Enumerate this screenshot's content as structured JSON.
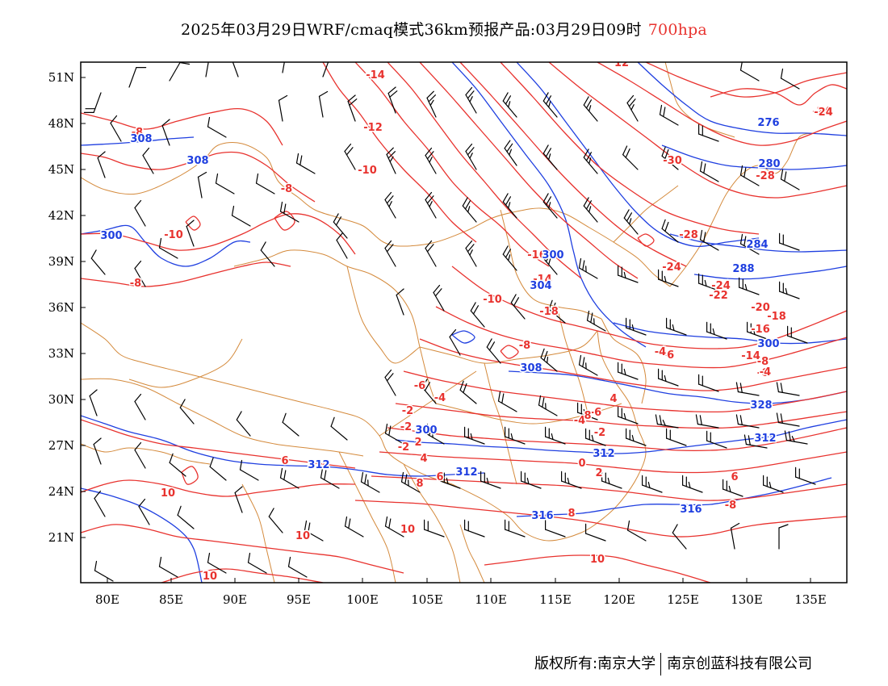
{
  "title": {
    "main": "2025年03月29日WRF/cmaq模式36km预报产品:03月29日09时",
    "level": "700hpa"
  },
  "colors": {
    "temperature_contour": "#e8322e",
    "height_contour": "#1f3fe0",
    "border": "#d48a3c",
    "wind_barb": "#000000",
    "frame": "#000000"
  },
  "axes": {
    "lon_ticks": [
      "80E",
      "85E",
      "90E",
      "95E",
      "100E",
      "105E",
      "110E",
      "115E",
      "120E",
      "125E",
      "130E",
      "135E"
    ],
    "lat_ticks": [
      "51N",
      "48N",
      "45N",
      "42N",
      "39N",
      "36N",
      "33N",
      "30N",
      "27N",
      "24N",
      "21N"
    ]
  },
  "contour_labels": {
    "temperature": [
      "-14",
      "-12",
      "-10",
      "-8",
      "-8",
      "-8",
      "-10",
      "-16",
      "-14",
      "-10",
      "-18",
      "-8",
      "-6",
      "-4",
      "-2",
      "-2",
      "-2",
      "2",
      "4",
      "6",
      "8",
      "10",
      "10",
      "10",
      "10",
      "10",
      "12",
      "-30",
      "-28",
      "-28",
      "-24",
      "-24",
      "-24",
      "-22",
      "-20",
      "-18",
      "-16",
      "-14",
      "-8",
      "-6",
      "-4",
      "-6",
      "-4",
      "-2",
      "0",
      "2",
      "4",
      "6",
      "-8",
      "6",
      "8",
      "-6",
      "-4",
      "8",
      "-24"
    ],
    "height": [
      "308",
      "308",
      "300",
      "300",
      "304",
      "308",
      "300",
      "312",
      "312",
      "312",
      "316",
      "316",
      "312",
      "276",
      "280",
      "284",
      "288",
      "300",
      "328"
    ]
  },
  "footer": {
    "left": "版权所有:南京大学",
    "right": "南京创蓝科技有限公司"
  }
}
